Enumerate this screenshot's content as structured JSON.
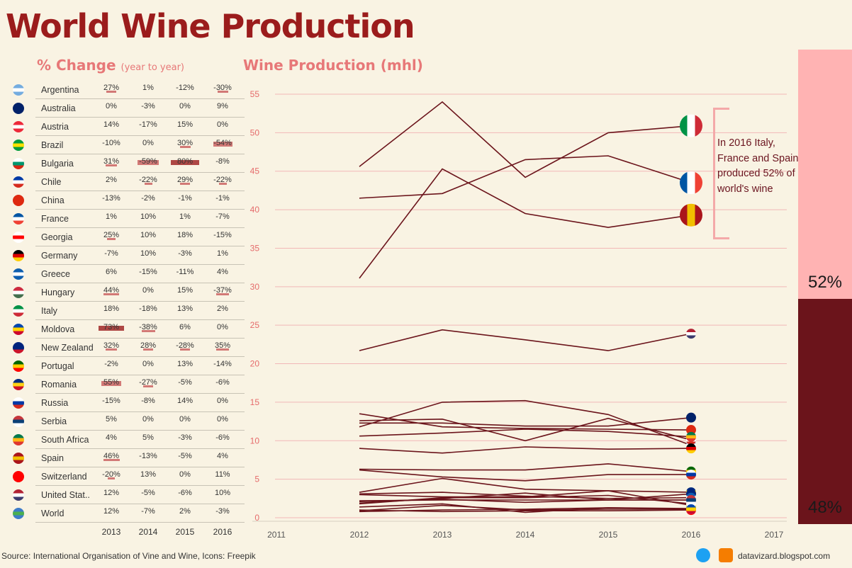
{
  "title": "World Wine Production",
  "pct_change": {
    "heading": "% Change",
    "subheading": "(year to year)",
    "years": [
      "2013",
      "2014",
      "2015",
      "2016"
    ],
    "rows": [
      {
        "country": "Argentina",
        "flag": [
          "#74acdf",
          "#ffffff",
          "#74acdf"
        ],
        "values": [
          "27%",
          "1%",
          "-12%",
          "-30%"
        ],
        "nums": [
          27,
          1,
          -12,
          -30
        ]
      },
      {
        "country": "Australia",
        "flag": [
          "#012169",
          "#012169",
          "#012169"
        ],
        "values": [
          "0%",
          "-3%",
          "0%",
          "9%"
        ],
        "nums": [
          0,
          -3,
          0,
          9
        ]
      },
      {
        "country": "Austria",
        "flag": [
          "#ed2939",
          "#ffffff",
          "#ed2939"
        ],
        "values": [
          "14%",
          "-17%",
          "15%",
          "0%"
        ],
        "nums": [
          14,
          -17,
          15,
          0
        ]
      },
      {
        "country": "Brazil",
        "flag": [
          "#009c3b",
          "#ffdf00",
          "#009c3b"
        ],
        "values": [
          "-10%",
          "0%",
          "30%",
          "-54%"
        ],
        "nums": [
          -10,
          0,
          30,
          -54
        ]
      },
      {
        "country": "Bulgaria",
        "flag": [
          "#ffffff",
          "#00966e",
          "#d62612"
        ],
        "values": [
          "31%",
          "-59%",
          "80%",
          "-8%"
        ],
        "nums": [
          31,
          -59,
          80,
          -8
        ]
      },
      {
        "country": "Chile",
        "flag": [
          "#0039a6",
          "#ffffff",
          "#d52b1e"
        ],
        "values": [
          "2%",
          "-22%",
          "29%",
          "-22%"
        ],
        "nums": [
          2,
          -22,
          29,
          -22
        ]
      },
      {
        "country": "China",
        "flag": [
          "#de2910",
          "#de2910",
          "#de2910"
        ],
        "values": [
          "-13%",
          "-2%",
          "-1%",
          "-1%"
        ],
        "nums": [
          -13,
          -2,
          -1,
          -1
        ]
      },
      {
        "country": "France",
        "flag": [
          "#0055a4",
          "#ffffff",
          "#ef4135"
        ],
        "values": [
          "1%",
          "10%",
          "1%",
          "-7%"
        ],
        "nums": [
          1,
          10,
          1,
          -7
        ]
      },
      {
        "country": "Georgia",
        "flag": [
          "#ffffff",
          "#ff0000",
          "#ffffff"
        ],
        "values": [
          "25%",
          "10%",
          "18%",
          "-15%"
        ],
        "nums": [
          25,
          10,
          18,
          -15
        ]
      },
      {
        "country": "Germany",
        "flag": [
          "#000000",
          "#dd0000",
          "#ffce00"
        ],
        "values": [
          "-7%",
          "10%",
          "-3%",
          "1%"
        ],
        "nums": [
          -7,
          10,
          -3,
          1
        ]
      },
      {
        "country": "Greece",
        "flag": [
          "#0d5eaf",
          "#ffffff",
          "#0d5eaf"
        ],
        "values": [
          "6%",
          "-15%",
          "-11%",
          "4%"
        ],
        "nums": [
          6,
          -15,
          -11,
          4
        ]
      },
      {
        "country": "Hungary",
        "flag": [
          "#cd2a3e",
          "#ffffff",
          "#436f4d"
        ],
        "values": [
          "44%",
          "0%",
          "15%",
          "-37%"
        ],
        "nums": [
          44,
          0,
          15,
          -37
        ]
      },
      {
        "country": "Italy",
        "flag": [
          "#009246",
          "#ffffff",
          "#ce2b37"
        ],
        "values": [
          "18%",
          "-18%",
          "13%",
          "2%"
        ],
        "nums": [
          18,
          -18,
          13,
          2
        ]
      },
      {
        "country": "Moldova",
        "flag": [
          "#0046ae",
          "#ffd200",
          "#cc092f"
        ],
        "values": [
          "73%",
          "-38%",
          "6%",
          "0%"
        ],
        "nums": [
          73,
          -38,
          6,
          0
        ]
      },
      {
        "country": "New Zealand",
        "flag": [
          "#00247d",
          "#00247d",
          "#cc142b"
        ],
        "values": [
          "32%",
          "28%",
          "-28%",
          "35%"
        ],
        "nums": [
          32,
          28,
          -28,
          35
        ]
      },
      {
        "country": "Portugal",
        "flag": [
          "#006600",
          "#ffcc00",
          "#ff0000"
        ],
        "values": [
          "-2%",
          "0%",
          "13%",
          "-14%"
        ],
        "nums": [
          -2,
          0,
          13,
          -14
        ]
      },
      {
        "country": "Romania",
        "flag": [
          "#002b7f",
          "#fcd116",
          "#ce1126"
        ],
        "values": [
          "55%",
          "-27%",
          "-5%",
          "-6%"
        ],
        "nums": [
          55,
          -27,
          -5,
          -6
        ]
      },
      {
        "country": "Russia",
        "flag": [
          "#ffffff",
          "#0039a6",
          "#d52b1e"
        ],
        "values": [
          "-15%",
          "-8%",
          "14%",
          "0%"
        ],
        "nums": [
          -15,
          -8,
          14,
          0
        ]
      },
      {
        "country": "Serbia",
        "flag": [
          "#c6363c",
          "#0c4076",
          "#ffffff"
        ],
        "values": [
          "5%",
          "0%",
          "0%",
          "0%"
        ],
        "nums": [
          5,
          0,
          0,
          0
        ]
      },
      {
        "country": "South Africa",
        "flag": [
          "#007a4d",
          "#ffb612",
          "#de3831"
        ],
        "values": [
          "4%",
          "5%",
          "-3%",
          "-6%"
        ],
        "nums": [
          4,
          5,
          -3,
          -6
        ]
      },
      {
        "country": "Spain",
        "flag": [
          "#aa151b",
          "#f1bf00",
          "#aa151b"
        ],
        "values": [
          "46%",
          "-13%",
          "-5%",
          "4%"
        ],
        "nums": [
          46,
          -13,
          -5,
          4
        ]
      },
      {
        "country": "Switzerland",
        "flag": [
          "#ff0000",
          "#ff0000",
          "#ff0000"
        ],
        "values": [
          "-20%",
          "13%",
          "0%",
          "11%"
        ],
        "nums": [
          -20,
          13,
          0,
          11
        ]
      },
      {
        "country": "United Stat..",
        "flag": [
          "#b22234",
          "#ffffff",
          "#3c3b6e"
        ],
        "values": [
          "12%",
          "-5%",
          "-6%",
          "10%"
        ],
        "nums": [
          12,
          -5,
          -6,
          10
        ]
      },
      {
        "country": "World",
        "flag": [
          "#3d7cc9",
          "#4caf50",
          "#3d7cc9"
        ],
        "values": [
          "12%",
          "-7%",
          "2%",
          "-3%"
        ],
        "nums": [
          12,
          -7,
          2,
          -3
        ]
      }
    ]
  },
  "chart_data": {
    "type": "line",
    "title": "Wine Production (mhl)",
    "xlabel": "",
    "ylabel": "",
    "x": [
      2012,
      2013,
      2014,
      2015,
      2016
    ],
    "x_ticks": [
      "2011",
      "2012",
      "2013",
      "2014",
      "2015",
      "2016",
      "2017"
    ],
    "y_ticks": [
      "0",
      "5",
      "10",
      "15",
      "20",
      "25",
      "30",
      "35",
      "40",
      "45",
      "50",
      "55"
    ],
    "xlim": [
      2011,
      2017
    ],
    "ylim": [
      0,
      55
    ],
    "series": [
      {
        "name": "Italy",
        "values": [
          45.6,
          54.0,
          44.2,
          50.0,
          50.9
        ]
      },
      {
        "name": "France",
        "values": [
          41.5,
          42.1,
          46.5,
          47.0,
          43.5
        ]
      },
      {
        "name": "Spain",
        "values": [
          31.1,
          45.3,
          39.5,
          37.7,
          39.3
        ]
      },
      {
        "name": "United States",
        "values": [
          21.7,
          24.4,
          23.1,
          21.7,
          23.9
        ]
      },
      {
        "name": "Argentina",
        "values": [
          11.8,
          15.0,
          15.2,
          13.4,
          9.4
        ]
      },
      {
        "name": "Australia",
        "values": [
          12.3,
          12.3,
          11.9,
          11.9,
          13.0
        ]
      },
      {
        "name": "China",
        "values": [
          13.5,
          11.8,
          11.6,
          11.5,
          11.4
        ]
      },
      {
        "name": "Chile",
        "values": [
          12.6,
          12.8,
          10.0,
          12.9,
          10.1
        ]
      },
      {
        "name": "South Africa",
        "values": [
          10.6,
          11.0,
          11.5,
          11.2,
          10.5
        ]
      },
      {
        "name": "Germany",
        "values": [
          9.0,
          8.4,
          9.2,
          8.9,
          9.0
        ]
      },
      {
        "name": "Portugal",
        "values": [
          6.3,
          6.2,
          6.2,
          7.0,
          6.0
        ]
      },
      {
        "name": "Russia",
        "values": [
          6.2,
          5.3,
          4.8,
          5.6,
          5.6
        ]
      },
      {
        "name": "Romania",
        "values": [
          3.3,
          5.1,
          3.7,
          3.5,
          3.3
        ]
      },
      {
        "name": "New Zealand",
        "values": [
          1.9,
          2.5,
          3.2,
          2.3,
          3.1
        ]
      },
      {
        "name": "Brazil",
        "values": [
          3.0,
          2.7,
          2.7,
          3.5,
          1.6
        ]
      },
      {
        "name": "Hungary",
        "values": [
          1.8,
          2.6,
          2.6,
          2.9,
          1.8
        ]
      },
      {
        "name": "Austria",
        "values": [
          2.1,
          2.4,
          2.0,
          2.3,
          2.3
        ]
      },
      {
        "name": "Greece",
        "values": [
          3.1,
          3.3,
          2.8,
          2.5,
          2.6
        ]
      },
      {
        "name": "Bulgaria",
        "values": [
          1.4,
          1.8,
          0.7,
          1.3,
          1.2
        ]
      },
      {
        "name": "Switzerland",
        "values": [
          1.0,
          0.8,
          0.9,
          0.9,
          1.0
        ]
      },
      {
        "name": "Serbia",
        "values": [
          2.2,
          2.3,
          2.3,
          2.3,
          2.3
        ]
      },
      {
        "name": "Georgia",
        "values": [
          0.8,
          1.0,
          1.1,
          1.3,
          1.1
        ]
      },
      {
        "name": "Moldova",
        "values": [
          0.9,
          1.6,
          1.0,
          1.1,
          1.1
        ]
      }
    ],
    "annotation": "In 2016 Italy, France and Spain produced 52% of world's wine"
  },
  "share": {
    "top3": "52%",
    "rest": "48%"
  },
  "footer": {
    "source": "Source: International Organisation of Vine and Wine, Icons: Freepik",
    "blog": "datavizard.blogspot.com"
  },
  "colors": {
    "line": "#6b141b",
    "grid": "#f2b7b7",
    "accent": "#9b1c1c",
    "pink": "#ffb3b3"
  }
}
